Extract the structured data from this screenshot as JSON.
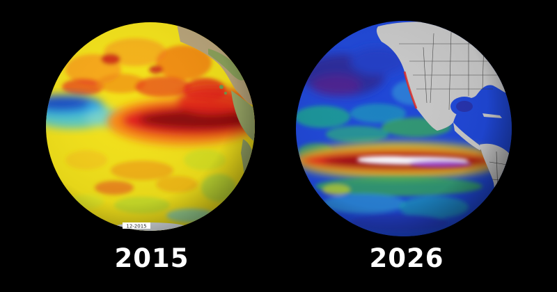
{
  "panels": [
    {
      "year": "2015",
      "stamp": "12-2015",
      "colors": {
        "ocean_base": "#f2e11a",
        "warm_core": "#8b0d0d",
        "warm_mid": "#e2221a",
        "warm_edge": "#f88a12",
        "cool_band": "#2a6ed6",
        "cool_light": "#38c3e8",
        "land": "#b8a47a",
        "land_green": "#7fa052"
      }
    },
    {
      "year": "2026",
      "colors": {
        "ocean_base": "#1f47d6",
        "deep_blue": "#2a2a9a",
        "teal": "#19a88c",
        "green": "#39b649",
        "yellow": "#e6e023",
        "red": "#e3231a",
        "dark_red": "#8c0f12",
        "hot_white": "#f2f0fa",
        "hot_purple": "#9b3ad6",
        "land": "#c7c7c7",
        "border": "#3a3a3a"
      }
    }
  ]
}
